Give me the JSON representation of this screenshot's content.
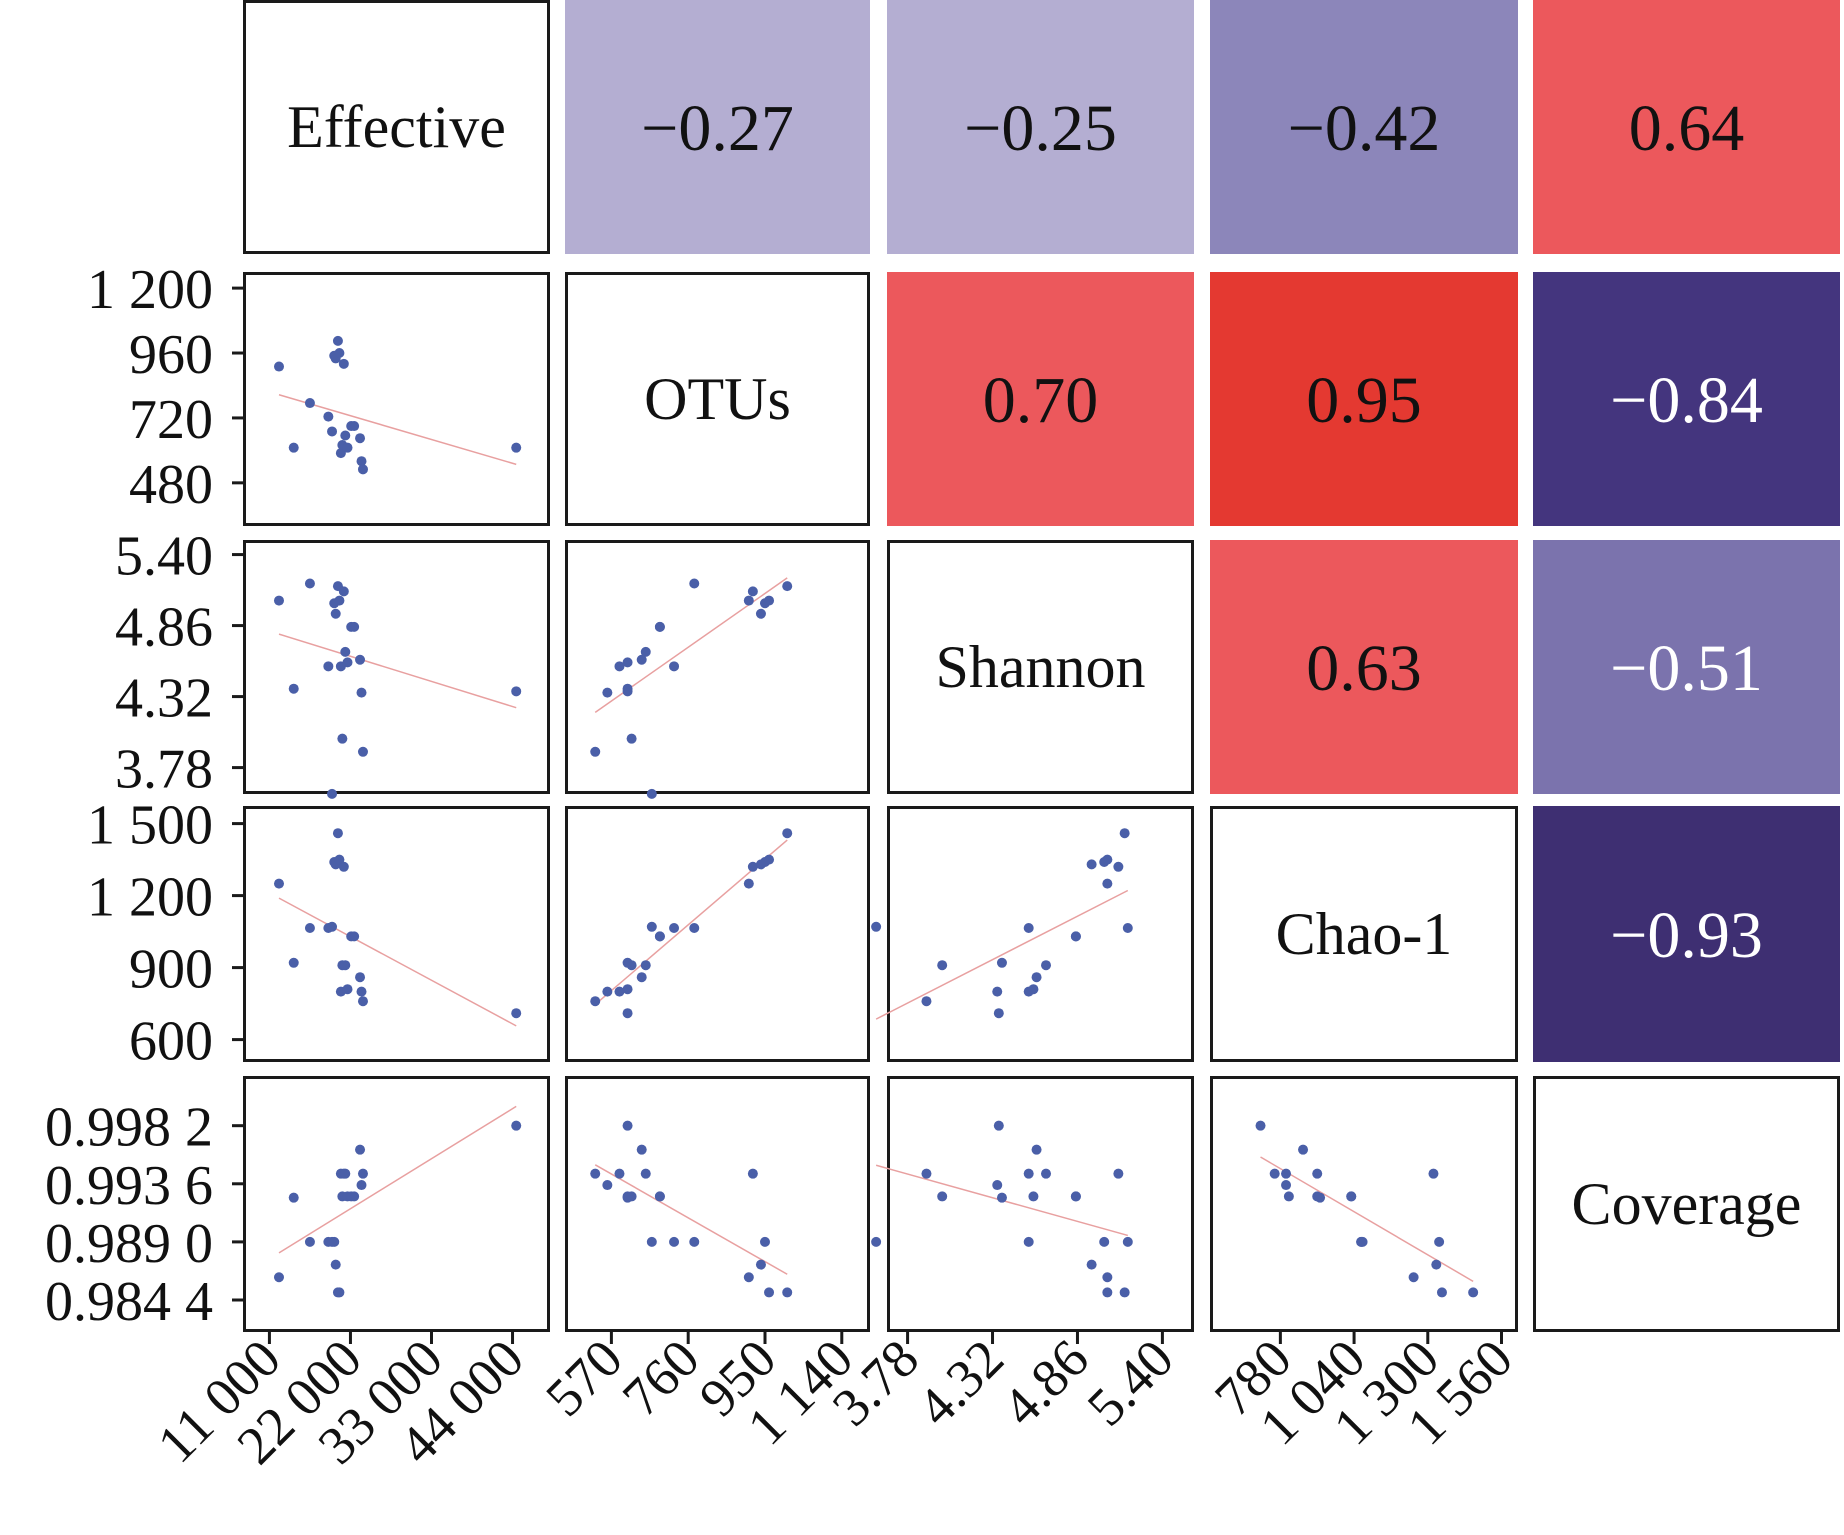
{
  "chart_data": {
    "type": "scatter",
    "variables": [
      "Effective",
      "OTUs",
      "Shannon",
      "Chao-1",
      "Coverage"
    ],
    "correlations": [
      {
        "row": "Effective",
        "col": "OTUs",
        "r": -0.27,
        "label": "−0.27"
      },
      {
        "row": "Effective",
        "col": "Shannon",
        "r": -0.25,
        "label": "−0.25"
      },
      {
        "row": "Effective",
        "col": "Chao-1",
        "r": -0.42,
        "label": "−0.42"
      },
      {
        "row": "Effective",
        "col": "Coverage",
        "r": 0.64,
        "label": "0.64"
      },
      {
        "row": "OTUs",
        "col": "Shannon",
        "r": 0.7,
        "label": "0.70"
      },
      {
        "row": "OTUs",
        "col": "Chao-1",
        "r": 0.95,
        "label": "0.95"
      },
      {
        "row": "OTUs",
        "col": "Coverage",
        "r": -0.84,
        "label": "−0.84"
      },
      {
        "row": "Shannon",
        "col": "Chao-1",
        "r": 0.63,
        "label": "0.63"
      },
      {
        "row": "Shannon",
        "col": "Coverage",
        "r": -0.51,
        "label": "−0.51"
      },
      {
        "row": "Chao-1",
        "col": "Coverage",
        "r": -0.93,
        "label": "−0.93"
      }
    ],
    "colors": {
      "positive_strong": "#e43931",
      "positive": "#ec585c",
      "negative_light": "#b4aed2",
      "negative_mid": "#8c86ba",
      "negative_mid2": "#7b73ad",
      "negative_strong": "#44357e",
      "negative_strongest": "#3e2f72",
      "points": "#4a5fa8",
      "fit_line": "#e8a0a0"
    },
    "x_axes": [
      {
        "variable": "Effective",
        "ticks": [
          11000,
          22000,
          33000,
          44000
        ],
        "tick_labels": [
          "11 000",
          "22 000",
          "33 000",
          "44 000"
        ],
        "range": [
          8500,
          48000
        ]
      },
      {
        "variable": "OTUs",
        "ticks": [
          570,
          760,
          950,
          1140
        ],
        "tick_labels": [
          "570",
          "760",
          "950",
          "1 140"
        ],
        "range": [
          475,
          1190
        ]
      },
      {
        "variable": "Shannon",
        "ticks": [
          3.78,
          4.32,
          4.86,
          5.4
        ],
        "tick_labels": [
          "3.78",
          "4.32",
          "4.86",
          "5.40"
        ],
        "range": [
          3.7,
          5.55
        ]
      },
      {
        "variable": "Chao-1",
        "ticks": [
          780,
          1040,
          1300,
          1560
        ],
        "tick_labels": [
          "780",
          "1 040",
          "1 300",
          "1 560"
        ],
        "range": [
          560,
          1590
        ]
      }
    ],
    "y_axes": [
      {
        "variable": "OTUs",
        "ticks": [
          480,
          720,
          960,
          1200
        ],
        "tick_labels": [
          "480",
          "720",
          "960",
          "1 200"
        ],
        "range": [
          350,
          1230
        ]
      },
      {
        "variable": "Shannon",
        "ticks": [
          3.78,
          4.32,
          4.86,
          5.4
        ],
        "tick_labels": [
          "3.78",
          "4.32",
          "4.86",
          "5.40"
        ],
        "range": [
          3.64,
          5.45
        ]
      },
      {
        "variable": "Chao-1",
        "ticks": [
          600,
          900,
          1200,
          1500
        ],
        "tick_labels": [
          "600",
          "900",
          "1 200",
          "1 500"
        ],
        "range": [
          540,
          1540
        ]
      },
      {
        "variable": "Coverage",
        "ticks": [
          0.9844,
          0.989,
          0.9936,
          0.9982
        ],
        "tick_labels": [
          "0.984 4",
          "0.989 0",
          "0.993 6",
          "0.998 2"
        ],
        "range": [
          0.9825,
          1.0015
        ]
      }
    ],
    "samples": [
      {
        "Effective": 12300,
        "OTUs": 910,
        "Shannon": 5.05,
        "Chao-1": 1250,
        "Coverage": 0.9862
      },
      {
        "Effective": 14300,
        "OTUs": 610,
        "Shannon": 4.38,
        "Chao-1": 920,
        "Coverage": 0.9925
      },
      {
        "Effective": 16500,
        "OTUs": 775,
        "Shannon": 5.18,
        "Chao-1": 1065,
        "Coverage": 0.989
      },
      {
        "Effective": 19000,
        "OTUs": 725,
        "Shannon": 4.55,
        "Chao-1": 1065,
        "Coverage": 0.989
      },
      {
        "Effective": 19500,
        "OTUs": 670,
        "Shannon": 3.58,
        "Chao-1": 1070,
        "Coverage": 0.989
      },
      {
        "Effective": 19800,
        "OTUs": 950,
        "Shannon": 5.03,
        "Chao-1": 1340,
        "Coverage": 0.989
      },
      {
        "Effective": 20000,
        "OTUs": 940,
        "Shannon": 4.95,
        "Chao-1": 1330,
        "Coverage": 0.9872
      },
      {
        "Effective": 20300,
        "OTUs": 1005,
        "Shannon": 5.16,
        "Chao-1": 1460,
        "Coverage": 0.985
      },
      {
        "Effective": 20500,
        "OTUs": 960,
        "Shannon": 5.05,
        "Chao-1": 1350,
        "Coverage": 0.985
      },
      {
        "Effective": 20700,
        "OTUs": 590,
        "Shannon": 4.55,
        "Chao-1": 800,
        "Coverage": 0.9944
      },
      {
        "Effective": 20900,
        "OTUs": 620,
        "Shannon": 4.0,
        "Chao-1": 910,
        "Coverage": 0.9926
      },
      {
        "Effective": 21100,
        "OTUs": 920,
        "Shannon": 5.12,
        "Chao-1": 1320,
        "Coverage": 0.9944
      },
      {
        "Effective": 21300,
        "OTUs": 655,
        "Shannon": 4.66,
        "Chao-1": 910,
        "Coverage": 0.9944
      },
      {
        "Effective": 21600,
        "OTUs": 610,
        "Shannon": 4.58,
        "Chao-1": 810,
        "Coverage": 0.9926
      },
      {
        "Effective": 22100,
        "OTUs": 690,
        "Shannon": 4.85,
        "Chao-1": 1030,
        "Coverage": 0.9926
      },
      {
        "Effective": 22500,
        "OTUs": 690,
        "Shannon": 4.85,
        "Chao-1": 1030,
        "Coverage": 0.9926
      },
      {
        "Effective": 23300,
        "OTUs": 645,
        "Shannon": 4.6,
        "Chao-1": 860,
        "Coverage": 0.9963
      },
      {
        "Effective": 23500,
        "OTUs": 560,
        "Shannon": 4.35,
        "Chao-1": 800,
        "Coverage": 0.9935
      },
      {
        "Effective": 23700,
        "OTUs": 530,
        "Shannon": 3.9,
        "Chao-1": 760,
        "Coverage": 0.9944
      },
      {
        "Effective": 44500,
        "OTUs": 610,
        "Shannon": 4.36,
        "Chao-1": 710,
        "Coverage": 0.9982
      }
    ]
  }
}
